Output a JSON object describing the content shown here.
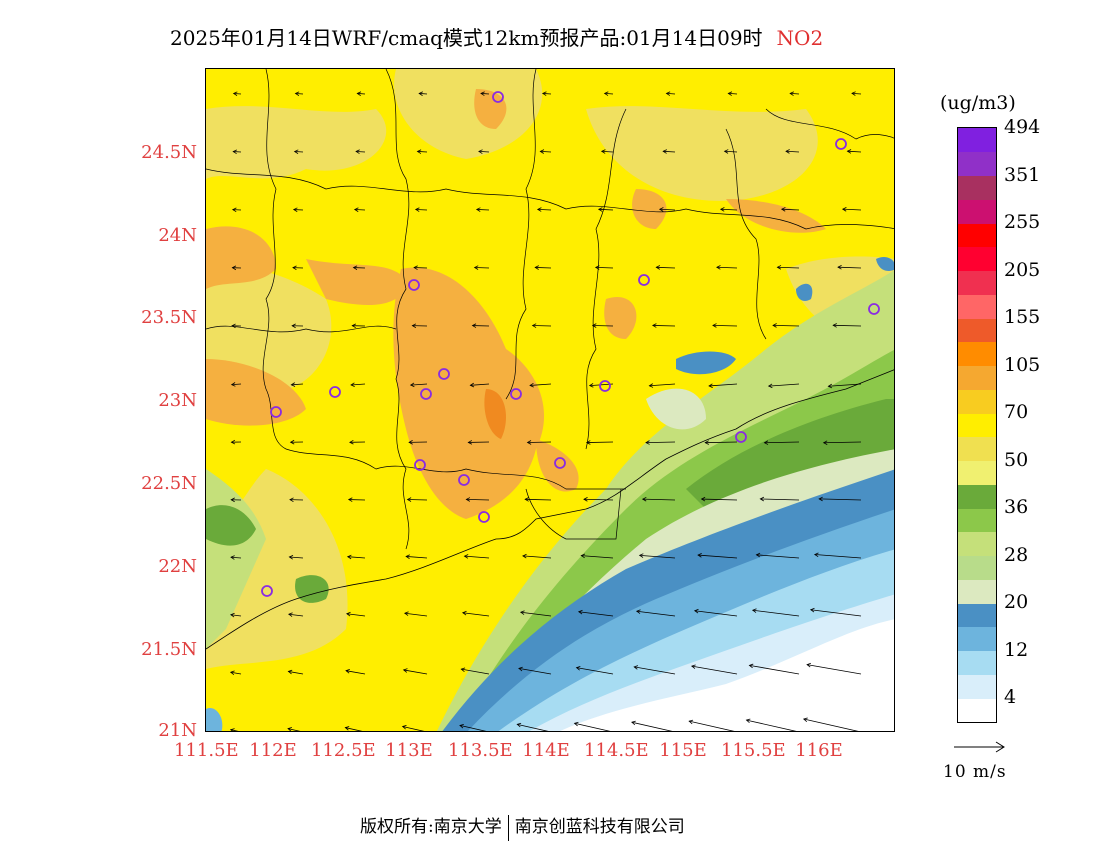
{
  "title": {
    "main": "2025年01月14日WRF/cmaq模式12km预报产品:01月14日09时",
    "pollutant": "NO2",
    "pollutant_color": "#e03030"
  },
  "map": {
    "lat_labels": [
      "24.5N",
      "24N",
      "23.5N",
      "23N",
      "22.5N",
      "22N",
      "21.5N",
      "21N"
    ],
    "lon_labels": [
      "111.5E",
      "112E",
      "112.5E",
      "113E",
      "113.5E",
      "114E",
      "114.5E",
      "115E",
      "115.5E",
      "116E"
    ],
    "label_color": "#e04040",
    "marker_color": "#8a2be2"
  },
  "legend": {
    "unit": "(ug/m3)",
    "colors": [
      "#ffffff",
      "#d9eefa",
      "#a7dcf2",
      "#6db4dd",
      "#4a90c4",
      "#dce9c0",
      "#b8dc8a",
      "#c5e07a",
      "#8cc84a",
      "#6aaa3a",
      "#f0f070",
      "#f0e050",
      "#ffee00",
      "#f8cc20",
      "#f5a830",
      "#ff8c00",
      "#ee5a2a",
      "#ff6666",
      "#f03050",
      "#ff0030",
      "#ff0000",
      "#cc1070",
      "#a83060",
      "#9030c8",
      "#8020e0"
    ],
    "labels": [
      "4",
      "12",
      "20",
      "28",
      "36",
      "50",
      "70",
      "105",
      "155",
      "205",
      "255",
      "351",
      "494"
    ]
  },
  "wind_reference": {
    "label": "10 m/s"
  },
  "footer": {
    "copyright": "版权所有:南京大学",
    "company": "南京创蓝科技有限公司"
  }
}
